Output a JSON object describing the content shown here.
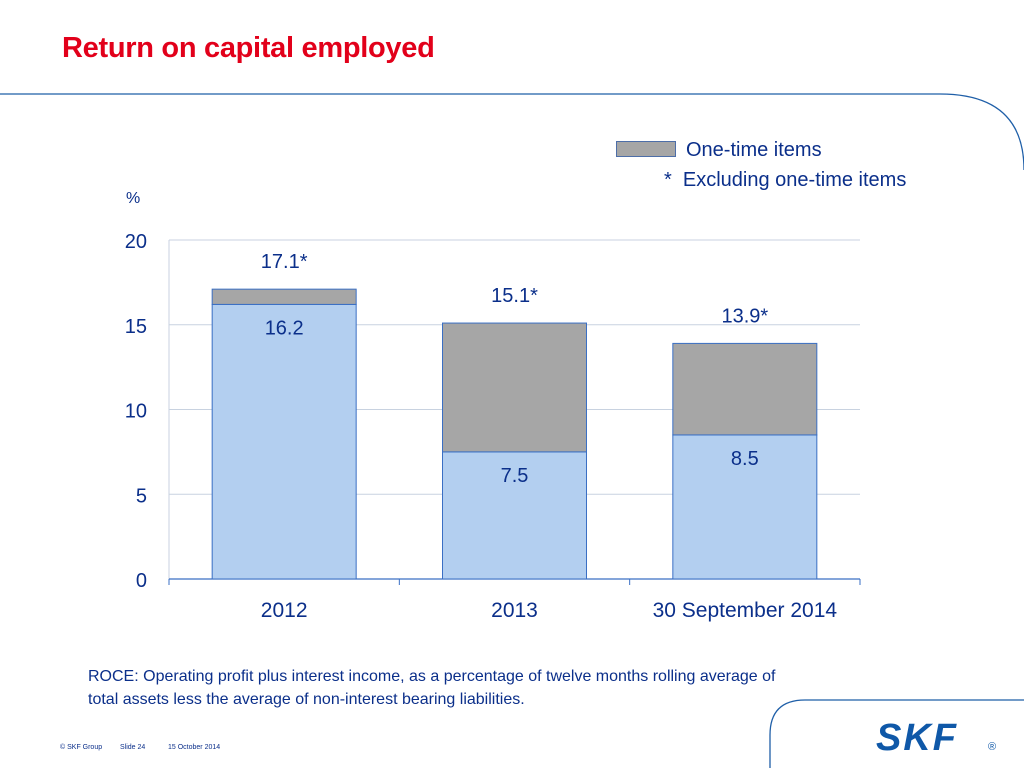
{
  "slide": {
    "title": "Return on capital employed",
    "definition": "ROCE: Operating profit plus interest income, as a percentage of twelve months rolling average of total assets less the average of non-interest bearing liabilities.",
    "footer": {
      "copyright": "© SKF Group",
      "slide": "Slide 24",
      "date": "15 October 2014"
    },
    "logo": {
      "text": "SKF",
      "mark": "®"
    }
  },
  "legend": {
    "one_time_label": "One-time items",
    "excluding_note": "*  Excluding one-time items"
  },
  "colors": {
    "title": "#e2001a",
    "text": "#0b2f8a",
    "base_bar": "#b3cff0",
    "one_time_bar": "#a6a6a6",
    "bar_border": "#3a6fc4",
    "grid": "#c8d2e0",
    "logo": "#0f58a8"
  },
  "chart_data": {
    "type": "bar",
    "stacked": true,
    "unit_label": "%",
    "categories": [
      "2012",
      "2013",
      "30 September 2014"
    ],
    "series": [
      {
        "name": "",
        "values": [
          16.2,
          7.5,
          8.5
        ]
      },
      {
        "name": "One-time items",
        "values": [
          0.9,
          7.6,
          5.4
        ]
      }
    ],
    "totals": [
      17.1,
      15.1,
      13.9
    ],
    "base_labels": [
      "16.2",
      "7.5",
      "8.5"
    ],
    "total_labels": [
      "17.1*",
      "15.1*",
      "13.9*"
    ],
    "yticks": [
      "0",
      "5",
      "10",
      "15",
      "20"
    ],
    "ylim": [
      0,
      20
    ],
    "grid": true
  }
}
